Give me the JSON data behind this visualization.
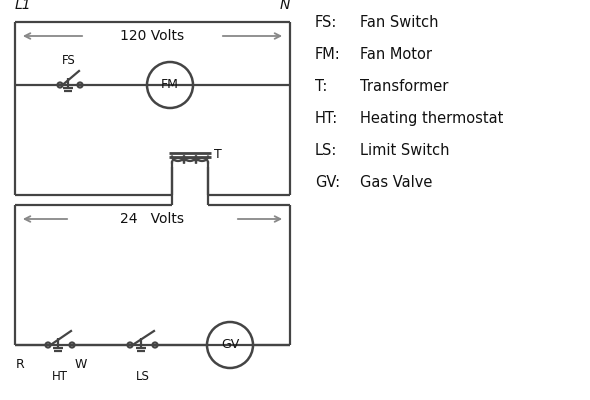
{
  "bg_color": "#ffffff",
  "line_color": "#444444",
  "arrow_color": "#888888",
  "text_color": "#111111",
  "volts_120": "120 Volts",
  "volts_24": "24   Volts",
  "L1": "L1",
  "N": "N",
  "legend_items": [
    [
      "FS:",
      "Fan Switch"
    ],
    [
      "FM:",
      "Fan Motor"
    ],
    [
      "T:",
      "Transformer"
    ],
    [
      "HT:",
      "Heating thermostat"
    ],
    [
      "LS:",
      "Limit Switch"
    ],
    [
      "GV:",
      "Gas Valve"
    ]
  ]
}
